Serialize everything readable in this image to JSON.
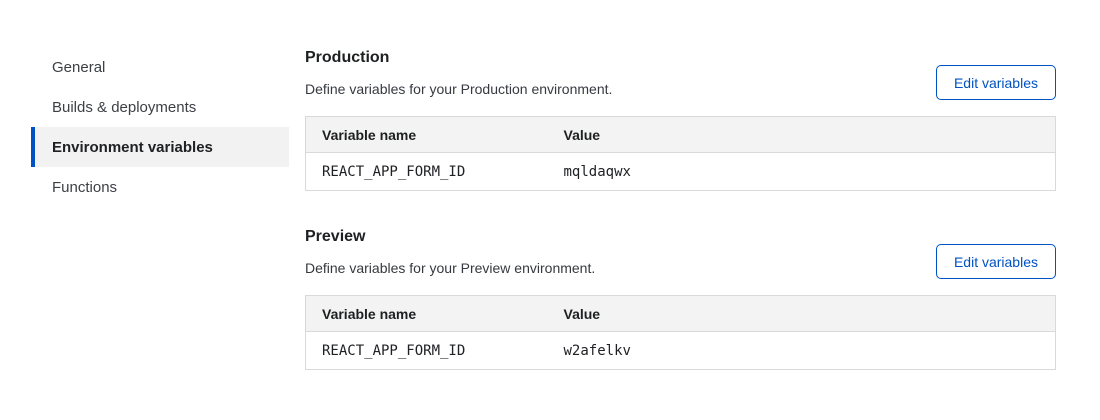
{
  "sidebar": {
    "items": [
      {
        "label": "General",
        "selected": false
      },
      {
        "label": "Builds & deployments",
        "selected": false
      },
      {
        "label": "Environment variables",
        "selected": true
      },
      {
        "label": "Functions",
        "selected": false
      }
    ]
  },
  "sections": [
    {
      "title": "Production",
      "description": "Define variables for your Production environment.",
      "button_label": "Edit variables",
      "table": {
        "columns": [
          "Variable name",
          "Value"
        ],
        "rows": [
          [
            "REACT_APP_FORM_ID",
            "mqldaqwx"
          ]
        ]
      }
    },
    {
      "title": "Preview",
      "description": "Define variables for your Preview environment.",
      "button_label": "Edit variables",
      "table": {
        "columns": [
          "Variable name",
          "Value"
        ],
        "rows": [
          [
            "REACT_APP_FORM_ID",
            "w2afelkv"
          ]
        ]
      }
    }
  ],
  "colors": {
    "accent_blue": "#0051c3",
    "selected_item_bg": "#f2f2f2",
    "table_header_bg": "#f3f3f3",
    "table_border": "#d9d9d9"
  }
}
